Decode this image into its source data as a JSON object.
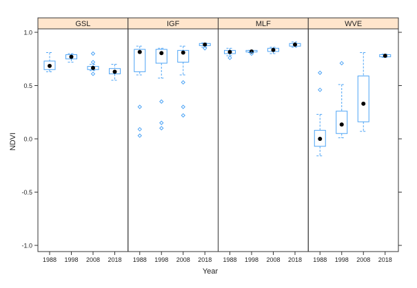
{
  "chart_data": {
    "type": "boxplot",
    "xlabel": "Year",
    "ylabel": "NDVI",
    "ylim": [
      -1.05,
      1.05
    ],
    "yticks": [
      -1.0,
      -0.5,
      0.0,
      0.5,
      1.0
    ],
    "ytick_labels": [
      "-1.0",
      "-0.5",
      "0.0",
      "0.5",
      "1.0"
    ],
    "categories": [
      "1988",
      "1998",
      "2008",
      "2018"
    ],
    "colors": {
      "box": "#4ca3f5",
      "median": "#000000",
      "strip": "#ffe5cc"
    },
    "panels": [
      {
        "name": "GSL",
        "boxes": [
          {
            "q1": 0.65,
            "median": 0.685,
            "q3": 0.73,
            "lo": 0.63,
            "hi": 0.81,
            "outliers": []
          },
          {
            "q1": 0.75,
            "median": 0.77,
            "q3": 0.79,
            "lo": 0.72,
            "hi": 0.8,
            "outliers": []
          },
          {
            "q1": 0.65,
            "median": 0.665,
            "q3": 0.68,
            "lo": 0.64,
            "hi": 0.7,
            "outliers": [
              0.8,
              0.72,
              0.61
            ]
          },
          {
            "q1": 0.61,
            "median": 0.63,
            "q3": 0.66,
            "lo": 0.55,
            "hi": 0.7,
            "outliers": []
          }
        ]
      },
      {
        "name": "IGF",
        "boxes": [
          {
            "q1": 0.63,
            "median": 0.815,
            "q3": 0.84,
            "lo": 0.6,
            "hi": 0.87,
            "outliers": [
              0.3,
              0.09,
              0.03
            ]
          },
          {
            "q1": 0.71,
            "median": 0.805,
            "q3": 0.84,
            "lo": 0.57,
            "hi": 0.85,
            "outliers": [
              0.35,
              0.15,
              0.1
            ]
          },
          {
            "q1": 0.72,
            "median": 0.81,
            "q3": 0.83,
            "lo": 0.6,
            "hi": 0.87,
            "outliers": [
              0.53,
              0.3,
              0.22
            ]
          },
          {
            "q1": 0.875,
            "median": 0.885,
            "q3": 0.895,
            "lo": 0.86,
            "hi": 0.9,
            "outliers": [
              0.85
            ]
          }
        ]
      },
      {
        "name": "MLF",
        "boxes": [
          {
            "q1": 0.8,
            "median": 0.815,
            "q3": 0.83,
            "lo": 0.78,
            "hi": 0.85,
            "outliers": [
              0.76
            ]
          },
          {
            "q1": 0.815,
            "median": 0.82,
            "q3": 0.83,
            "lo": 0.81,
            "hi": 0.83,
            "outliers": [
              0.8
            ]
          },
          {
            "q1": 0.82,
            "median": 0.835,
            "q3": 0.85,
            "lo": 0.8,
            "hi": 0.86,
            "outliers": []
          },
          {
            "q1": 0.87,
            "median": 0.885,
            "q3": 0.895,
            "lo": 0.86,
            "hi": 0.91,
            "outliers": []
          }
        ]
      },
      {
        "name": "WVE",
        "boxes": [
          {
            "q1": -0.07,
            "median": 0.0,
            "q3": 0.08,
            "lo": -0.16,
            "hi": 0.23,
            "outliers": [
              0.62,
              0.46
            ]
          },
          {
            "q1": 0.05,
            "median": 0.135,
            "q3": 0.26,
            "lo": 0.01,
            "hi": 0.51,
            "outliers": [
              0.71
            ]
          },
          {
            "q1": 0.16,
            "median": 0.33,
            "q3": 0.59,
            "lo": 0.07,
            "hi": 0.81,
            "outliers": []
          },
          {
            "q1": 0.77,
            "median": 0.78,
            "q3": 0.79,
            "lo": 0.765,
            "hi": 0.795,
            "outliers": []
          }
        ]
      }
    ]
  }
}
